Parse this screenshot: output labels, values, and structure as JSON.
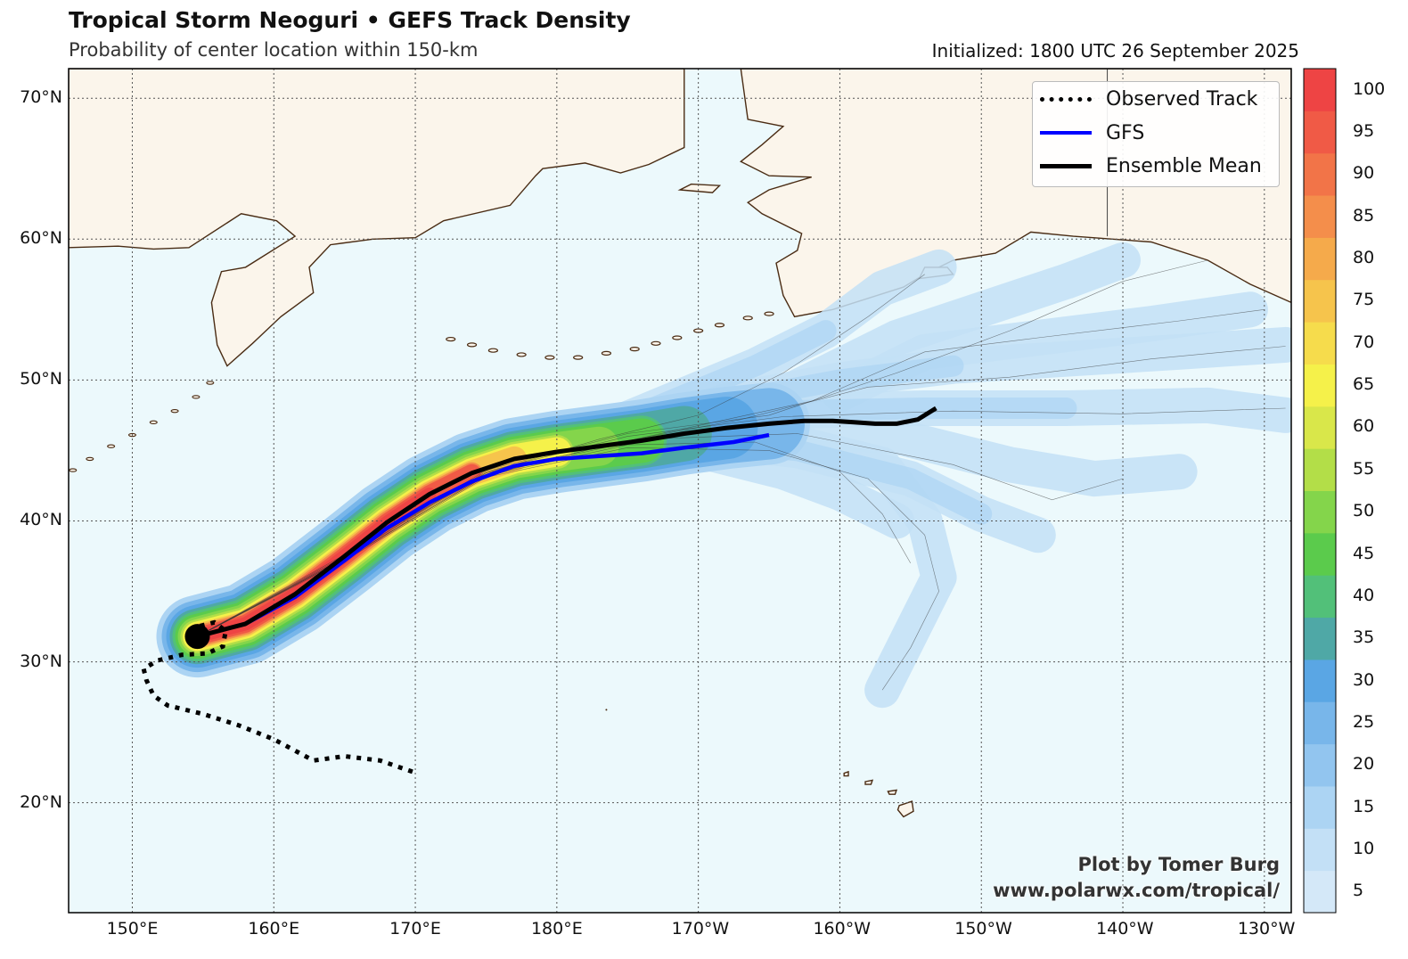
{
  "header": {
    "title": "Tropical Storm Neoguri • GEFS Track Density",
    "subtitle": "Probability of center location within 150-km",
    "initialized": "Initialized: 1800 UTC 26 September 2025"
  },
  "map": {
    "projection": "PlateCarree",
    "lon_range": [
      145.5,
      231.9
    ],
    "lat_range": [
      12.2,
      72.1
    ],
    "colors": {
      "ocean": "#ecf9fc",
      "land": "#fbf5eb",
      "coast": "#4a2c14",
      "grid": "#555555"
    },
    "lon_ticks": [
      {
        "lon": 150,
        "label": "150°E"
      },
      {
        "lon": 160,
        "label": "160°E"
      },
      {
        "lon": 170,
        "label": "170°E"
      },
      {
        "lon": 180,
        "label": "180°E"
      },
      {
        "lon": 190,
        "label": "170°W"
      },
      {
        "lon": 200,
        "label": "160°W"
      },
      {
        "lon": 210,
        "label": "150°W"
      },
      {
        "lon": 220,
        "label": "140°W"
      },
      {
        "lon": 230,
        "label": "130°W"
      }
    ],
    "lat_ticks": [
      {
        "lat": 20,
        "label": "20°N"
      },
      {
        "lat": 30,
        "label": "30°N"
      },
      {
        "lat": 40,
        "label": "40°N"
      },
      {
        "lat": 50,
        "label": "50°N"
      },
      {
        "lat": 60,
        "label": "60°N"
      },
      {
        "lat": 70,
        "label": "70°N"
      }
    ]
  },
  "legend": {
    "observed": "Observed Track",
    "gfs": "GFS",
    "mean": "Ensemble Mean",
    "colors": {
      "observed": "#000000",
      "gfs": "#0000ff",
      "mean": "#000000"
    }
  },
  "tracks": {
    "observed": [
      [
        169.8,
        22.2
      ],
      [
        167.5,
        23.0
      ],
      [
        165.0,
        23.3
      ],
      [
        162.8,
        23.0
      ],
      [
        160.0,
        24.5
      ],
      [
        157.5,
        25.5
      ],
      [
        155.0,
        26.3
      ],
      [
        152.5,
        26.9
      ],
      [
        151.5,
        27.6
      ],
      [
        151.0,
        28.7
      ],
      [
        150.8,
        29.5
      ],
      [
        151.8,
        30.1
      ],
      [
        153.5,
        30.5
      ],
      [
        155.3,
        30.6
      ],
      [
        156.4,
        31.1
      ],
      [
        156.6,
        32.2
      ],
      [
        155.8,
        32.8
      ],
      [
        154.6,
        32.5
      ],
      [
        154.6,
        31.8
      ]
    ],
    "gfs": [
      [
        154.6,
        31.8
      ],
      [
        158.0,
        32.7
      ],
      [
        161.5,
        34.6
      ],
      [
        165.0,
        37.2
      ],
      [
        168.0,
        39.5
      ],
      [
        171.0,
        41.3
      ],
      [
        174.0,
        42.8
      ],
      [
        177.0,
        43.9
      ],
      [
        180.0,
        44.4
      ],
      [
        183.0,
        44.6
      ],
      [
        186.0,
        44.8
      ],
      [
        189.0,
        45.2
      ],
      [
        192.5,
        45.6
      ],
      [
        195.0,
        46.1
      ]
    ],
    "mean": [
      [
        154.6,
        31.8
      ],
      [
        158.0,
        32.7
      ],
      [
        161.5,
        34.8
      ],
      [
        165.0,
        37.5
      ],
      [
        168.0,
        39.9
      ],
      [
        171.0,
        41.9
      ],
      [
        174.0,
        43.4
      ],
      [
        177.0,
        44.4
      ],
      [
        180.0,
        44.9
      ],
      [
        183.0,
        45.3
      ],
      [
        186.0,
        45.7
      ],
      [
        189.0,
        46.2
      ],
      [
        192.0,
        46.6
      ],
      [
        195.0,
        46.9
      ],
      [
        197.5,
        47.1
      ],
      [
        199.5,
        47.1
      ],
      [
        201.0,
        47.0
      ],
      [
        202.5,
        46.9
      ],
      [
        204.0,
        46.9
      ],
      [
        205.5,
        47.2
      ],
      [
        206.8,
        48.0
      ]
    ]
  },
  "colorbar": {
    "ticks": [
      5,
      10,
      15,
      20,
      25,
      30,
      35,
      40,
      45,
      50,
      55,
      60,
      65,
      70,
      75,
      80,
      85,
      90,
      95,
      100
    ],
    "colors": [
      "#d4e8f8",
      "#c3e0f6",
      "#acd4f3",
      "#92c5ef",
      "#78b6ea",
      "#5aa6e4",
      "#4fa8a6",
      "#52c079",
      "#5bcb4c",
      "#84d54b",
      "#b3de48",
      "#d9e74a",
      "#f5f14a",
      "#f6dc4c",
      "#f6c44c",
      "#f5aa4b",
      "#f48e4b",
      "#f27448",
      "#f05a46",
      "#ee4444"
    ]
  },
  "credit": {
    "line1": "Plot by Tomer Burg",
    "line2": "www.polarwx.com/tropical/"
  }
}
